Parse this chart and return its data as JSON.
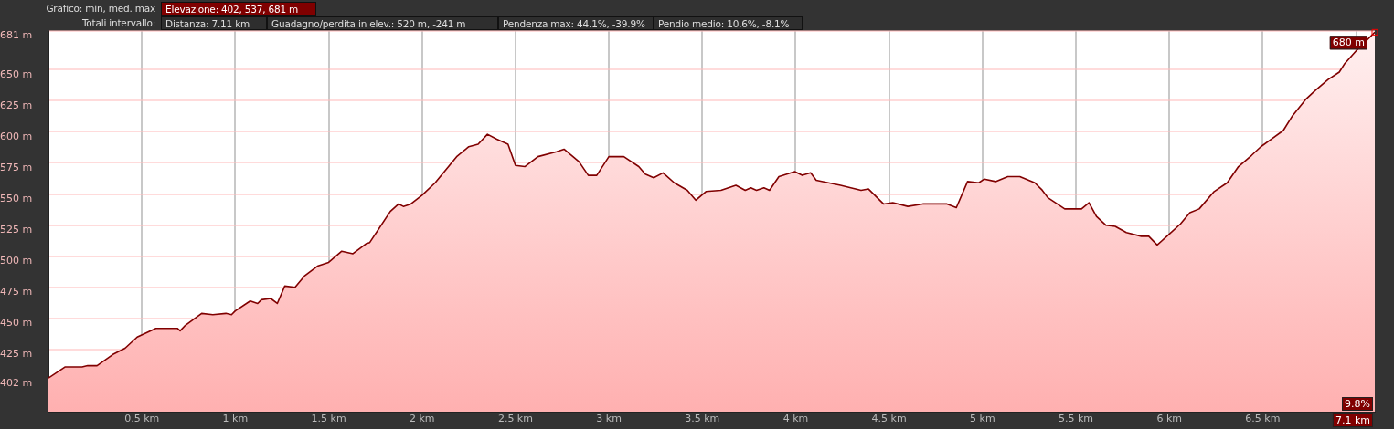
{
  "chart_data": {
    "type": "area",
    "annotations": [
      "Grafico: min, med. max",
      "Elevazione: 402, 537, 681 m",
      "Totali intervallo:",
      "Distanza: 7.11 km",
      "Guadagno/perdita in elev.: 520 m, -241 m",
      "Pendenza max: 44.1%, -39.9%",
      "Pendio medio: 10.6%, -8.1%",
      {
        "text": "680 m",
        "x": 7.1,
        "y": 680
      },
      "9.8%",
      "7.1 km"
    ],
    "x": [
      0,
      0.09,
      0.18,
      0.21,
      0.26,
      0.345,
      0.41,
      0.475,
      0.575,
      0.69,
      0.705,
      0.73,
      0.82,
      0.88,
      0.95,
      0.98,
      1.0,
      1.08,
      1.12,
      1.14,
      1.19,
      1.225,
      1.265,
      1.32,
      1.37,
      1.44,
      1.5,
      1.57,
      1.63,
      1.7,
      1.72,
      1.83,
      1.875,
      1.9,
      1.94,
      2.0,
      2.07,
      2.185,
      2.25,
      2.3,
      2.35,
      2.4,
      2.46,
      2.5,
      2.55,
      2.62,
      2.72,
      2.76,
      2.84,
      2.89,
      2.935,
      3.0,
      3.08,
      3.16,
      3.195,
      3.24,
      3.29,
      3.35,
      3.42,
      3.465,
      3.52,
      3.6,
      3.68,
      3.73,
      3.76,
      3.79,
      3.83,
      3.86,
      3.91,
      3.995,
      4.035,
      4.08,
      4.11,
      4.24,
      4.35,
      4.39,
      4.47,
      4.52,
      4.6,
      4.68,
      4.73,
      4.81,
      4.86,
      4.92,
      4.98,
      5.01,
      5.07,
      5.135,
      5.2,
      5.28,
      5.32,
      5.35,
      5.4,
      5.44,
      5.53,
      5.57,
      5.61,
      5.66,
      5.71,
      5.77,
      5.85,
      5.89,
      5.935,
      5.98,
      6.06,
      6.11,
      6.16,
      6.24,
      6.31,
      6.37,
      6.44,
      6.49,
      6.545,
      6.61,
      6.66,
      6.73,
      6.78,
      6.85,
      6.91,
      6.94,
      7.0,
      7.1
    ],
    "series": [
      {
        "color": "#800000",
        "values": [
          402,
          411,
          411,
          412,
          412,
          421,
          426,
          435,
          442,
          442,
          440,
          444,
          454,
          453,
          454,
          453,
          456,
          464,
          462,
          465,
          466,
          462,
          476,
          475,
          484,
          492,
          495,
          504,
          502,
          510,
          511,
          536,
          542,
          540,
          542,
          549,
          559,
          580,
          588,
          590,
          598,
          594,
          590,
          573,
          572,
          580,
          584,
          586,
          576,
          565,
          565,
          580,
          580,
          572,
          566,
          563,
          567,
          559,
          553,
          545,
          552,
          553,
          557,
          553,
          555,
          553,
          555,
          553,
          564,
          568,
          565,
          567,
          561,
          557,
          553,
          554,
          542,
          543,
          540,
          542,
          542,
          542,
          539,
          560,
          559,
          562,
          560,
          564,
          564,
          559,
          553,
          547,
          542,
          538,
          538,
          543,
          532,
          525,
          524,
          519,
          516,
          516,
          509,
          515,
          526,
          535,
          538,
          552,
          559,
          572,
          581,
          588,
          594,
          601,
          613,
          626,
          633,
          642,
          648,
          655,
          665,
          680
        ]
      }
    ],
    "xlim": [
      0,
      7.1
    ],
    "ylim": [
      375,
      681
    ],
    "xticks": [
      {
        "value": 0.5,
        "label": "0.5 km"
      },
      {
        "value": 1,
        "label": "1 km"
      },
      {
        "value": 1.5,
        "label": "1.5 km"
      },
      {
        "value": 2,
        "label": "2 km"
      },
      {
        "value": 2.5,
        "label": "2.5 km"
      },
      {
        "value": 3,
        "label": "3 km"
      },
      {
        "value": 3.5,
        "label": "3.5 km"
      },
      {
        "value": 4,
        "label": "4 km"
      },
      {
        "value": 4.5,
        "label": "4.5 km"
      },
      {
        "value": 5,
        "label": "5 km"
      },
      {
        "value": 5.5,
        "label": "5.5 km"
      },
      {
        "value": 6,
        "label": "6 km"
      },
      {
        "value": 6.5,
        "label": "6.5 km"
      },
      {
        "value": 7,
        "label": null
      }
    ],
    "yticks": [
      {
        "value": 402,
        "label": "402 m"
      },
      {
        "value": 425,
        "label": "425 m"
      },
      {
        "value": 450,
        "label": "450 m"
      },
      {
        "value": 475,
        "label": "475 m"
      },
      {
        "value": 500,
        "label": "500 m"
      },
      {
        "value": 525,
        "label": "525 m"
      },
      {
        "value": 550,
        "label": "550 m"
      },
      {
        "value": 575,
        "label": "575 m"
      },
      {
        "value": 600,
        "label": "600 m"
      },
      {
        "value": 625,
        "label": "625 m"
      },
      {
        "value": 650,
        "label": "650 m"
      },
      {
        "value": 681,
        "label": "681 m"
      }
    ],
    "grid": true,
    "marker": "none",
    "line_style": "solid"
  }
}
